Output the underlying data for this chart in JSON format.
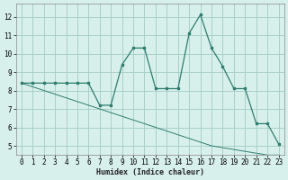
{
  "xlabel": "Humidex (Indice chaleur)",
  "x": [
    0,
    1,
    2,
    3,
    4,
    5,
    6,
    7,
    8,
    9,
    10,
    11,
    12,
    13,
    14,
    15,
    16,
    17,
    18,
    19,
    20,
    21,
    22,
    23
  ],
  "y_main": [
    8.4,
    8.4,
    8.4,
    8.4,
    8.4,
    8.4,
    8.4,
    7.2,
    7.2,
    9.4,
    10.3,
    10.3,
    8.1,
    8.1,
    8.1,
    11.1,
    12.1,
    10.3,
    9.3,
    8.1,
    8.1,
    6.2,
    6.2,
    5.1
  ],
  "y_diag": [
    8.4,
    8.2,
    8.0,
    7.8,
    7.6,
    7.4,
    7.2,
    7.0,
    6.8,
    6.6,
    6.4,
    6.2,
    6.0,
    5.8,
    5.6,
    5.4,
    5.2,
    5.0,
    4.9,
    4.8,
    4.7,
    4.6,
    4.5,
    4.5
  ],
  "line_color": "#2e7d6e",
  "bg_color": "#d8f0ec",
  "grid_color": "#a8cfc8",
  "ylim": [
    4.5,
    12.7
  ],
  "xlim": [
    -0.5,
    23.5
  ],
  "yticks": [
    5,
    6,
    7,
    8,
    9,
    10,
    11,
    12
  ],
  "xticks": [
    0,
    1,
    2,
    3,
    4,
    5,
    6,
    7,
    8,
    9,
    10,
    11,
    12,
    13,
    14,
    15,
    16,
    17,
    18,
    19,
    20,
    21,
    22,
    23
  ]
}
